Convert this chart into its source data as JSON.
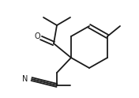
{
  "bg_color": "#ffffff",
  "line_color": "#1a1a1a",
  "line_width": 1.3,
  "font_size": 7.0,
  "figsize": [
    1.76,
    1.24
  ],
  "dpi": 100
}
